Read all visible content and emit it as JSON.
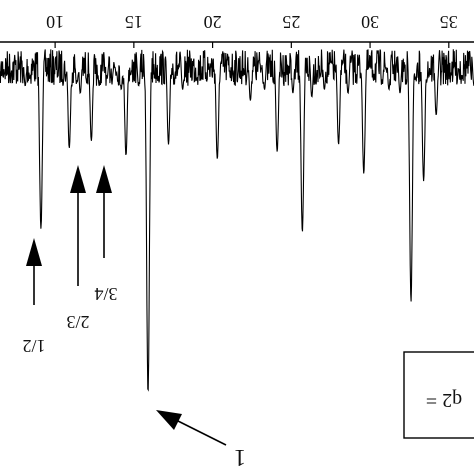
{
  "chart_data": {
    "type": "line",
    "title": "",
    "xlabel": "",
    "ylabel": "",
    "xlim": [
      6.5,
      36.6
    ],
    "x_ticks": [
      10,
      15,
      20,
      25,
      30,
      35
    ],
    "x_tick_labels": [
      "10",
      "15",
      "20",
      "25",
      "30",
      "35"
    ],
    "ylim": [
      -1.0,
      0.05
    ],
    "baseline_y": 0,
    "series": [
      {
        "values_note": "",
        "x": [
          6.5,
          8.1,
          8.4,
          9.1,
          10.7,
          10.9,
          11.4,
          11.6,
          12.3,
          12.8,
          13.3,
          13.6,
          14.2,
          14.5,
          14.8,
          15.3,
          15.9,
          17.2,
          18.1,
          20.3,
          22.4,
          23.3,
          24.1,
          25.1,
          25.7,
          26.3,
          27.1,
          28.0,
          28.6,
          29.6,
          31.2,
          31.9,
          32.6,
          32.9,
          33.4,
          34.2,
          36.6
        ],
        "y": [
          -0.08,
          -0.12,
          -0.1,
          -0.51,
          -0.09,
          -0.29,
          -0.11,
          -0.14,
          -0.27,
          -0.12,
          -0.1,
          -0.08,
          -0.13,
          -0.31,
          -0.09,
          -0.12,
          -0.96,
          -0.28,
          -0.13,
          -0.32,
          -0.16,
          -0.13,
          -0.3,
          -0.14,
          -0.52,
          -0.15,
          -0.13,
          -0.28,
          -0.14,
          -0.36,
          -0.13,
          -0.14,
          -0.71,
          -0.1,
          -0.38,
          -0.2,
          -0.12
        ]
      }
    ],
    "annotations": [
      {
        "id": "label-1-main",
        "text": "1",
        "x": 15.9,
        "y": -0.96
      },
      {
        "id": "label-1-2",
        "text": "1/2",
        "x": 9.1,
        "y": -0.51
      },
      {
        "id": "label-2-3",
        "text": "2/3",
        "x": 11.4,
        "y": -0.29
      },
      {
        "id": "label-3-4",
        "text": "3/4",
        "x": 12.3,
        "y": -0.27
      },
      {
        "id": "legend-box",
        "text": "q2 ="
      }
    ]
  }
}
